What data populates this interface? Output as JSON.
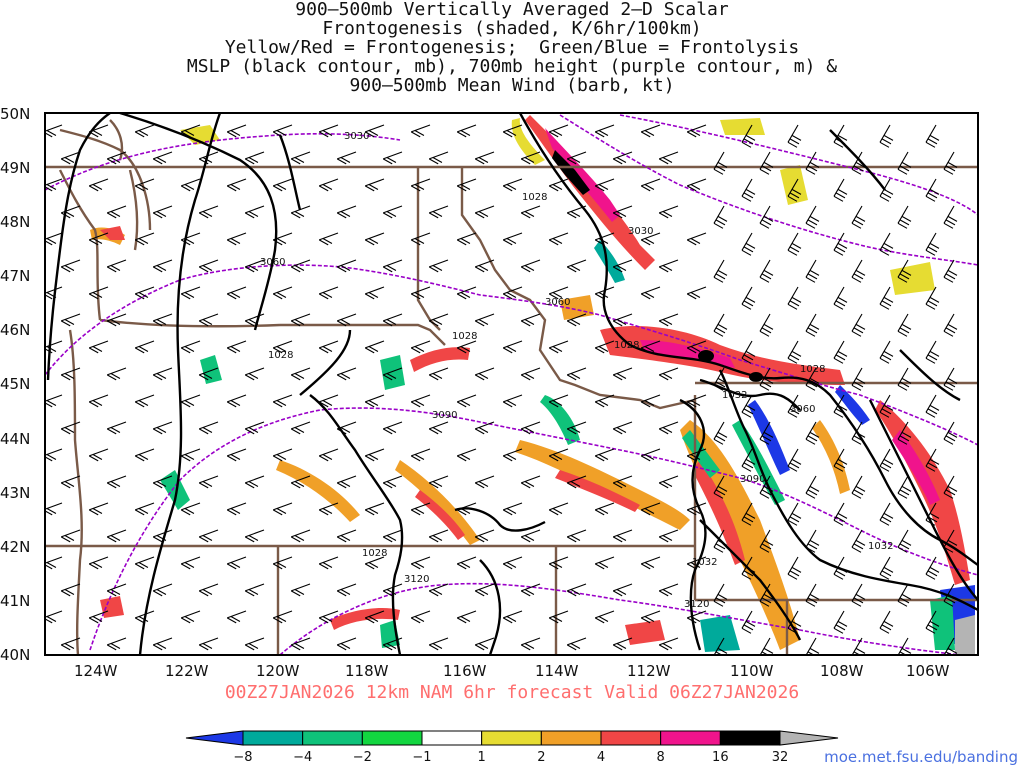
{
  "title": {
    "lines": [
      "900–500mb Vertically Averaged 2–D Scalar",
      "Frontogenesis (shaded, K/6hr/100km)",
      "Yellow/Red = Frontogenesis;  Green/Blue = Frontolysis",
      "MSLP (black contour, mb), 700mb height (purple contour, m) &",
      "900–500mb Mean Wind (barb, kt)"
    ]
  },
  "map": {
    "lat_labels": [
      "50N",
      "49N",
      "48N",
      "47N",
      "46N",
      "45N",
      "44N",
      "43N",
      "42N",
      "41N",
      "40N"
    ],
    "lon_labels": [
      "124W",
      "122W",
      "120W",
      "118W",
      "116W",
      "114W",
      "112W",
      "110W",
      "108W",
      "106W"
    ],
    "mslp_labels": [
      "1028",
      "1028",
      "1028",
      "1028",
      "1028",
      "1028",
      "1032",
      "1032",
      "1032"
    ],
    "height_labels": [
      "3030",
      "3060",
      "3030",
      "3060",
      "3090",
      "3060",
      "3090",
      "3120",
      "3120"
    ],
    "colors": {
      "mslp": "#000000",
      "height": "#9a00c8",
      "borders": "#7a5a48",
      "barbs": "#000000"
    }
  },
  "footer": {
    "valid_line": "00Z27JAN2026 12km NAM 6hr forecast Valid 06Z27JAN2026",
    "credit": "moe.met.fsu.edu/banding"
  },
  "colorbar": {
    "labels": [
      "−8",
      "−4",
      "−2",
      "−1",
      "1",
      "2",
      "4",
      "8",
      "16",
      "32"
    ],
    "colors": [
      "#1c38e6",
      "#00aa9b",
      "#0fc27a",
      "#12d640",
      "#ffffff",
      "#e6dc32",
      "#f0a028",
      "#f04646",
      "#f0148c",
      "#000000",
      "#b4b4b4"
    ]
  }
}
